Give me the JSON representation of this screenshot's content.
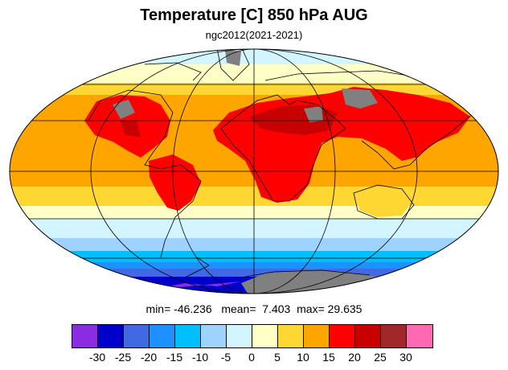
{
  "title": "Temperature [C] 850 hPa AUG",
  "subtitle": "ngc2012(2021-2021)",
  "stats": {
    "min_label": "min=",
    "min": "-46.236",
    "mean_label": "mean=",
    "mean": "7.403",
    "max_label": "max=",
    "max": "29.635"
  },
  "colorbar": {
    "colors": [
      "#8b2be2",
      "#0000cd",
      "#4169e1",
      "#1e90ff",
      "#00bfff",
      "#a0d2ff",
      "#d2f5ff",
      "#ffffc8",
      "#ffd732",
      "#ffa500",
      "#ff0000",
      "#c80000",
      "#a02828",
      "#ff69b4"
    ],
    "ticks": [
      "-30",
      "-25",
      "-20",
      "-15",
      "-10",
      "-5",
      "0",
      "5",
      "10",
      "15",
      "20",
      "25",
      "30"
    ]
  },
  "map_colors": {
    "missing": "#808080",
    "ocean_frame": "#000000"
  }
}
